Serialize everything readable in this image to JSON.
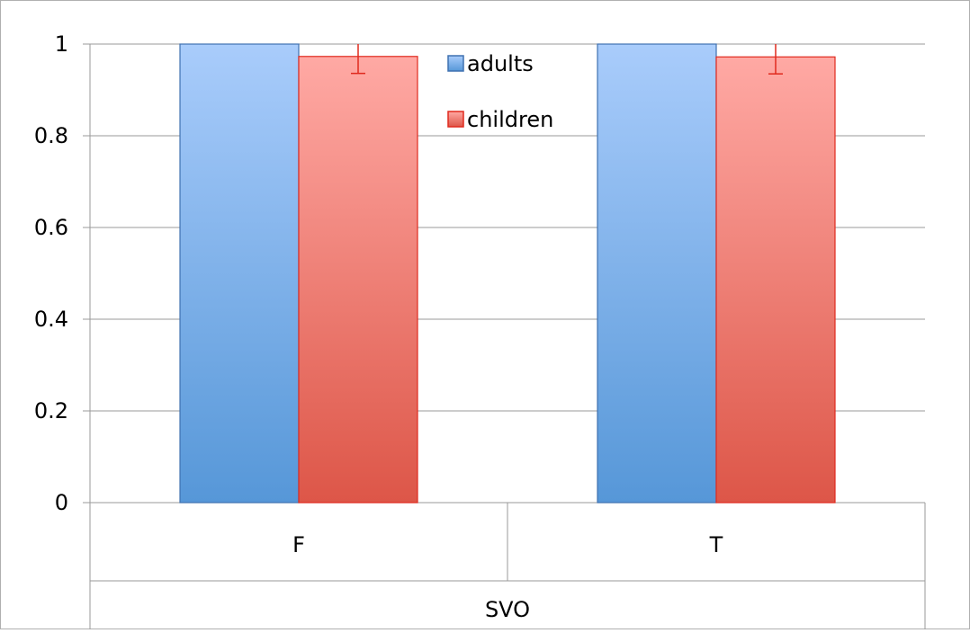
{
  "chart_data": {
    "type": "bar",
    "categories": [
      "F",
      "T"
    ],
    "group_label": "SVO",
    "series": [
      {
        "name": "adults",
        "values": [
          1.0,
          1.0
        ],
        "errors": [
          0,
          0
        ],
        "color": "#5b9bd5"
      },
      {
        "name": "children",
        "values": [
          0.973,
          0.972
        ],
        "errors": [
          0.037,
          0.037
        ],
        "color": "#e0574c"
      }
    ],
    "y_ticks": [
      "0",
      "0.2",
      "0.4",
      "0.6",
      "0.8",
      "1"
    ],
    "ylim": [
      0,
      1
    ],
    "grid": true,
    "legend_placement": "top-center"
  },
  "colors": {
    "adults_light": "#a9ccfb",
    "adults_dark": "#5697d8",
    "adults_border": "#3f71b0",
    "children_light": "#ffa9a4",
    "children_dark": "#dd5648",
    "children_border": "#e02a1e",
    "error_bar": "#e02a1e",
    "gridline": "#9a9a9a"
  }
}
